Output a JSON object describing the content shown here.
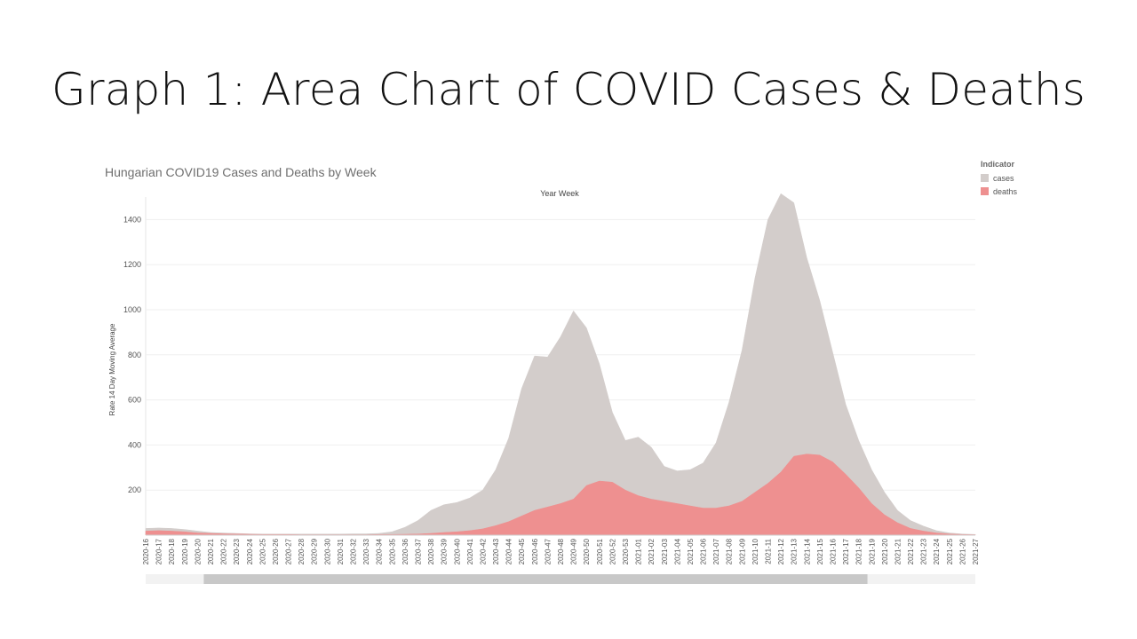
{
  "slide": {
    "title": "Graph 1: Area Chart of COVID Cases & Deaths"
  },
  "chart_data": {
    "type": "area",
    "title": "Hungarian COVID19 Cases and Deaths by Week",
    "xlabel": "Year Week",
    "ylabel": "Rate 14 Day Moving Average",
    "ylim": [
      0,
      1500
    ],
    "yticks": [
      200,
      400,
      600,
      800,
      1000,
      1200,
      1400
    ],
    "grid": true,
    "legend_title": "Indicator",
    "legend_position": "top-right",
    "x": [
      "2020-16",
      "2020-17",
      "2020-18",
      "2020-19",
      "2020-20",
      "2020-21",
      "2020-22",
      "2020-23",
      "2020-24",
      "2020-25",
      "2020-26",
      "2020-27",
      "2020-28",
      "2020-29",
      "2020-30",
      "2020-31",
      "2020-32",
      "2020-33",
      "2020-34",
      "2020-35",
      "2020-36",
      "2020-37",
      "2020-38",
      "2020-39",
      "2020-40",
      "2020-41",
      "2020-42",
      "2020-43",
      "2020-44",
      "2020-45",
      "2020-46",
      "2020-47",
      "2020-48",
      "2020-49",
      "2020-50",
      "2020-51",
      "2020-52",
      "2020-53",
      "2021-01",
      "2021-02",
      "2021-03",
      "2021-04",
      "2021-05",
      "2021-06",
      "2021-07",
      "2021-08",
      "2021-09",
      "2021-10",
      "2021-11",
      "2021-12",
      "2021-13",
      "2021-14",
      "2021-15",
      "2021-16",
      "2021-17",
      "2021-18",
      "2021-19",
      "2021-20",
      "2021-21",
      "2021-22",
      "2021-23",
      "2021-24",
      "2021-25",
      "2021-26",
      "2021-27"
    ],
    "series": [
      {
        "name": "cases",
        "color": "#d3cdcb",
        "values": [
          30,
          32,
          30,
          25,
          18,
          12,
          10,
          8,
          6,
          5,
          5,
          5,
          5,
          5,
          5,
          5,
          6,
          6,
          8,
          15,
          35,
          65,
          110,
          135,
          145,
          165,
          200,
          290,
          430,
          650,
          795,
          790,
          880,
          995,
          920,
          760,
          545,
          420,
          435,
          390,
          305,
          285,
          290,
          320,
          410,
          590,
          820,
          1140,
          1400,
          1515,
          1475,
          1230,
          1040,
          810,
          580,
          420,
          290,
          190,
          110,
          65,
          40,
          20,
          10,
          5,
          3
        ]
      },
      {
        "name": "deaths",
        "color": "#ee9090",
        "values": [
          18,
          20,
          18,
          15,
          10,
          8,
          6,
          5,
          4,
          3,
          3,
          3,
          2,
          2,
          2,
          2,
          2,
          2,
          3,
          3,
          4,
          5,
          8,
          12,
          15,
          20,
          28,
          42,
          60,
          85,
          110,
          125,
          140,
          160,
          220,
          240,
          235,
          200,
          175,
          160,
          150,
          140,
          130,
          120,
          120,
          130,
          150,
          190,
          230,
          280,
          350,
          360,
          355,
          325,
          270,
          210,
          140,
          90,
          55,
          30,
          18,
          10,
          5,
          3,
          2
        ]
      }
    ],
    "scrollbar": {
      "start": 0.07,
      "end": 0.87
    }
  }
}
